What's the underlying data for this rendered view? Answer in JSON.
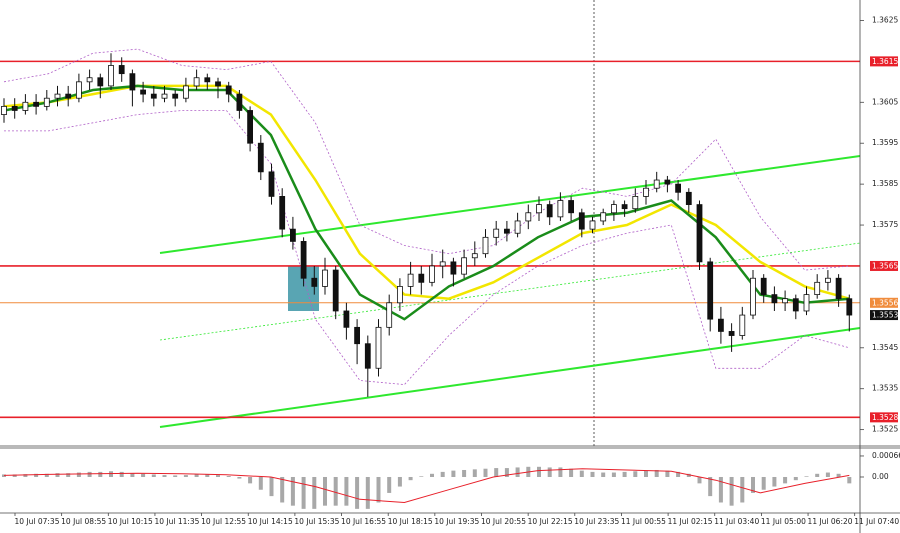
{
  "chart_data": {
    "type": "candlestick",
    "ylim": [
      1.3521,
      1.363
    ],
    "yticks": [
      1.3625,
      1.3605,
      1.3595,
      1.3585,
      1.3575,
      1.3545,
      1.3535,
      1.3525
    ],
    "candle_up_color": "#ffffff",
    "candle_down_color": "#111111",
    "ohlc": [
      [
        1.3602,
        1.3606,
        1.36,
        1.3604
      ],
      [
        1.3604,
        1.3606,
        1.3601,
        1.3603
      ],
      [
        1.3603,
        1.3607,
        1.3602,
        1.3605
      ],
      [
        1.3605,
        1.3607,
        1.3602,
        1.3604
      ],
      [
        1.3604,
        1.3608,
        1.3603,
        1.3606
      ],
      [
        1.3606,
        1.3609,
        1.3604,
        1.3607
      ],
      [
        1.3607,
        1.3609,
        1.3604,
        1.3606
      ],
      [
        1.3606,
        1.3612,
        1.3605,
        1.361
      ],
      [
        1.361,
        1.3613,
        1.3608,
        1.3611
      ],
      [
        1.3611,
        1.3612,
        1.3606,
        1.3609
      ],
      [
        1.3609,
        1.3617,
        1.3608,
        1.3614
      ],
      [
        1.3614,
        1.3616,
        1.361,
        1.3612
      ],
      [
        1.3612,
        1.3613,
        1.3604,
        1.3608
      ],
      [
        1.3608,
        1.361,
        1.3605,
        1.3607
      ],
      [
        1.3607,
        1.3609,
        1.3604,
        1.3606
      ],
      [
        1.3606,
        1.3609,
        1.3605,
        1.3607
      ],
      [
        1.3607,
        1.3608,
        1.3604,
        1.3606
      ],
      [
        1.3606,
        1.3611,
        1.3605,
        1.3609
      ],
      [
        1.3609,
        1.3613,
        1.3608,
        1.3611
      ],
      [
        1.3611,
        1.3612,
        1.3608,
        1.361
      ],
      [
        1.361,
        1.3611,
        1.3606,
        1.3609
      ],
      [
        1.3609,
        1.361,
        1.3605,
        1.3607
      ],
      [
        1.3607,
        1.3608,
        1.3601,
        1.3603
      ],
      [
        1.3603,
        1.3604,
        1.3593,
        1.3595
      ],
      [
        1.3595,
        1.3597,
        1.3586,
        1.3588
      ],
      [
        1.3588,
        1.359,
        1.358,
        1.3582
      ],
      [
        1.3582,
        1.3584,
        1.3572,
        1.3574
      ],
      [
        1.3574,
        1.3577,
        1.3569,
        1.3571
      ],
      [
        1.3571,
        1.3572,
        1.356,
        1.3562
      ],
      [
        1.3562,
        1.3565,
        1.3558,
        1.356
      ],
      [
        1.356,
        1.3567,
        1.3558,
        1.3564
      ],
      [
        1.3564,
        1.3565,
        1.3552,
        1.3554
      ],
      [
        1.3554,
        1.3556,
        1.3547,
        1.355
      ],
      [
        1.355,
        1.3552,
        1.3541,
        1.3546
      ],
      [
        1.3546,
        1.3548,
        1.3533,
        1.354
      ],
      [
        1.354,
        1.3552,
        1.3538,
        1.355
      ],
      [
        1.355,
        1.3558,
        1.3548,
        1.3556
      ],
      [
        1.3556,
        1.3562,
        1.3554,
        1.356
      ],
      [
        1.356,
        1.3566,
        1.3558,
        1.3563
      ],
      [
        1.3563,
        1.3565,
        1.3558,
        1.3561
      ],
      [
        1.3561,
        1.3568,
        1.356,
        1.3565
      ],
      [
        1.3565,
        1.3569,
        1.3562,
        1.3566
      ],
      [
        1.3566,
        1.3567,
        1.356,
        1.3563
      ],
      [
        1.3563,
        1.3569,
        1.3562,
        1.3567
      ],
      [
        1.3567,
        1.3571,
        1.3565,
        1.3568
      ],
      [
        1.3568,
        1.3574,
        1.3567,
        1.3572
      ],
      [
        1.3572,
        1.3576,
        1.357,
        1.3574
      ],
      [
        1.3574,
        1.3576,
        1.3571,
        1.3573
      ],
      [
        1.3573,
        1.3578,
        1.3572,
        1.3576
      ],
      [
        1.3576,
        1.358,
        1.3574,
        1.3578
      ],
      [
        1.3578,
        1.3582,
        1.3576,
        1.358
      ],
      [
        1.358,
        1.3581,
        1.3575,
        1.3577
      ],
      [
        1.3577,
        1.3583,
        1.3576,
        1.3581
      ],
      [
        1.3581,
        1.3582,
        1.3576,
        1.3578
      ],
      [
        1.3578,
        1.3579,
        1.3572,
        1.3574
      ],
      [
        1.3574,
        1.3577,
        1.3573,
        1.3576
      ],
      [
        1.3576,
        1.3579,
        1.3575,
        1.3578
      ],
      [
        1.3578,
        1.3581,
        1.3576,
        1.358
      ],
      [
        1.358,
        1.3581,
        1.3577,
        1.3579
      ],
      [
        1.3579,
        1.3584,
        1.3578,
        1.3582
      ],
      [
        1.3582,
        1.3586,
        1.358,
        1.3584
      ],
      [
        1.3584,
        1.3588,
        1.3583,
        1.3586
      ],
      [
        1.3586,
        1.3587,
        1.3583,
        1.3585
      ],
      [
        1.3585,
        1.3586,
        1.3581,
        1.3583
      ],
      [
        1.3583,
        1.3584,
        1.3578,
        1.358
      ],
      [
        1.358,
        1.3581,
        1.3564,
        1.3566
      ],
      [
        1.3566,
        1.3567,
        1.3549,
        1.3552
      ],
      [
        1.3552,
        1.3555,
        1.3546,
        1.3549
      ],
      [
        1.3549,
        1.3551,
        1.3544,
        1.3548
      ],
      [
        1.3548,
        1.3555,
        1.3547,
        1.3553
      ],
      [
        1.3553,
        1.3564,
        1.3552,
        1.3562
      ],
      [
        1.3562,
        1.3563,
        1.3556,
        1.3558
      ],
      [
        1.3558,
        1.356,
        1.3554,
        1.3556
      ],
      [
        1.3556,
        1.3559,
        1.3554,
        1.3557
      ],
      [
        1.3557,
        1.3558,
        1.3552,
        1.3554
      ],
      [
        1.3554,
        1.356,
        1.3553,
        1.3558
      ],
      [
        1.3558,
        1.3563,
        1.3557,
        1.3561
      ],
      [
        1.3561,
        1.3564,
        1.3559,
        1.3562
      ],
      [
        1.3562,
        1.3563,
        1.3555,
        1.3557
      ],
      [
        1.3557,
        1.3558,
        1.3549,
        1.3553
      ]
    ],
    "lines": [
      {
        "color": "#b060c8",
        "dashed": true,
        "width": 0.8,
        "values": [
          1.361,
          1.3612,
          1.3617,
          1.3618,
          1.3614,
          1.3613,
          1.3615,
          1.36,
          1.3575,
          1.357,
          1.3568,
          1.357,
          1.3578,
          1.3584,
          1.3582,
          1.3585,
          1.3596,
          1.3577,
          1.3564,
          1.3565
        ]
      },
      {
        "color": "#b060c8",
        "dashed": true,
        "width": 0.8,
        "values": [
          1.3598,
          1.3598,
          1.36,
          1.3602,
          1.3603,
          1.3603,
          1.359,
          1.3552,
          1.3537,
          1.3536,
          1.3548,
          1.3558,
          1.3565,
          1.357,
          1.3573,
          1.3575,
          1.354,
          1.354,
          1.3548,
          1.3545
        ]
      },
      {
        "color": "#f2e600",
        "dashed": false,
        "width": 2.5,
        "values": [
          1.3604,
          1.3605,
          1.3607,
          1.3609,
          1.3609,
          1.3609,
          1.3602,
          1.3586,
          1.3568,
          1.3558,
          1.3557,
          1.3561,
          1.3567,
          1.3573,
          1.3575,
          1.358,
          1.3575,
          1.3566,
          1.356,
          1.3557
        ]
      },
      {
        "color": "#1a8c1a",
        "dashed": false,
        "width": 2.5,
        "values": [
          1.3603,
          1.3605,
          1.3608,
          1.3609,
          1.3608,
          1.3608,
          1.3597,
          1.3574,
          1.3558,
          1.3552,
          1.356,
          1.3565,
          1.3572,
          1.3577,
          1.3578,
          1.3581,
          1.3572,
          1.3558,
          1.3556,
          1.3557
        ]
      }
    ],
    "levels": [
      {
        "value": 1.3615,
        "color": "#e8202a",
        "line": true
      },
      {
        "value": 1.3565,
        "color": "#e8202a",
        "line": true
      },
      {
        "value": 1.3528,
        "color": "#e8202a",
        "line": true
      },
      {
        "value": 1.3556,
        "color": "#f08c3c",
        "line": true
      },
      {
        "value": 1.3553,
        "color": "#111111",
        "line": false
      }
    ],
    "x_labels": [
      "10 Jul 07:35",
      "10 Jul 08:55",
      "10 Jul 10:15",
      "10 Jul 11:35",
      "10 Jul 12:55",
      "10 Jul 14:15",
      "10 Jul 15:35",
      "10 Jul 16:55",
      "10 Jul 18:15",
      "10 Jul 19:35",
      "10 Jul 20:55",
      "10 Jul 22:15",
      "10 Jul 23:35",
      "11 Jul 00:55",
      "11 Jul 02:15",
      "11 Jul 03:40",
      "11 Jul 05:00",
      "11 Jul 06:20",
      "11 Jul 07:40"
    ],
    "macd": {
      "ylim": [
        -0.00113,
        0.00091
      ],
      "yticks": [
        0.00066,
        {
          "value": 0,
          "label": "0.00"
        }
      ],
      "histogram_color": "#a8a8a8",
      "signal_color": "#e8202a",
      "histogram": [
        8e-05,
        8e-05,
        9e-05,
        0.0001,
        0.0001,
        0.00012,
        0.00012,
        0.00014,
        0.00016,
        0.00016,
        0.00018,
        0.00016,
        0.00012,
        0.0001,
        8e-05,
        6e-05,
        5e-05,
        6e-05,
        8e-05,
        8e-05,
        6e-05,
        3e-05,
        -5e-05,
        -0.0002,
        -0.0004,
        -0.0006,
        -0.0008,
        -0.0009,
        -0.001,
        -0.001,
        -0.0009,
        -0.0009,
        -0.0009,
        -0.001,
        -0.001,
        -0.0008,
        -0.0005,
        -0.0003,
        -0.0001,
        2e-05,
        0.0001,
        0.00016,
        0.0002,
        0.00022,
        0.00024,
        0.00026,
        0.00028,
        0.00028,
        0.0003,
        0.00032,
        0.00032,
        0.0003,
        0.0003,
        0.00026,
        0.0002,
        0.00016,
        0.00014,
        0.00014,
        0.00016,
        0.00018,
        0.0002,
        0.00022,
        0.0002,
        0.00016,
        0.0001,
        -0.0002,
        -0.0006,
        -0.0008,
        -0.0009,
        -0.0008,
        -0.0005,
        -0.0004,
        -0.0003,
        -0.0002,
        -0.0001,
        2e-05,
        0.0001,
        0.00014,
        0.0001,
        -0.0002
      ],
      "signal": [
        5e-05,
        8e-05,
        0.0001,
        0.00012,
        0.0001,
        7e-05,
        0,
        -0.0003,
        -0.0007,
        -0.0008,
        -0.0004,
        0,
        0.0002,
        0.00026,
        0.00022,
        0.00018,
        -0.0001,
        -0.0005,
        -0.0002,
        5e-05
      ]
    }
  }
}
